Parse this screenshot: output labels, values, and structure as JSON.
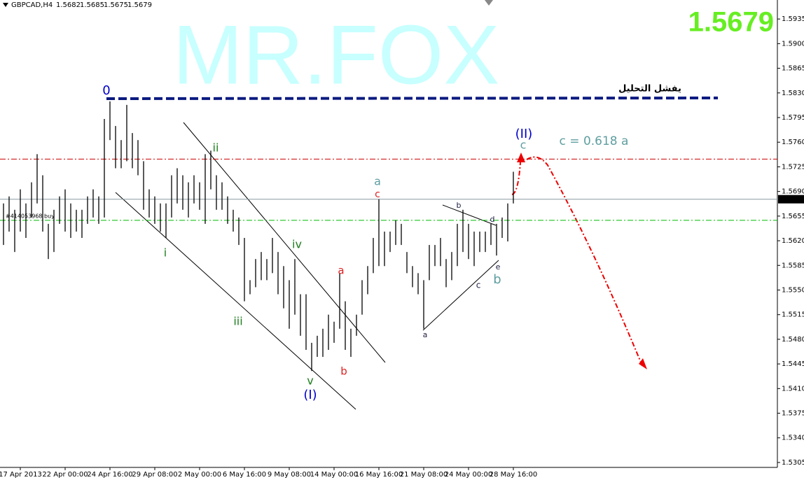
{
  "header": {
    "symbol": "GBPCAD,H4",
    "open": 1.5682,
    "high": 1.5685,
    "low": 1.5675,
    "close": 1.5679
  },
  "watermark": "MR.FOX",
  "chart_data": {
    "type": "ohlc",
    "color": "#000000",
    "x": [
      0,
      2,
      4,
      6,
      8,
      10,
      12,
      14,
      16,
      18,
      20,
      22,
      24,
      26,
      28,
      30,
      32,
      34,
      36,
      38,
      40,
      42,
      44,
      46,
      48,
      50,
      52,
      54,
      56,
      58,
      60,
      62,
      64,
      66,
      68,
      70,
      72,
      74,
      76,
      78,
      80,
      82,
      84,
      86,
      88,
      90,
      92,
      94,
      96,
      98,
      100,
      102,
      104,
      106,
      108,
      110,
      112,
      114,
      116,
      118,
      120,
      122,
      124,
      126,
      128,
      130,
      132,
      134,
      136,
      138,
      140,
      142,
      144,
      146,
      148,
      150,
      152,
      154,
      156,
      158,
      160,
      162,
      164,
      166,
      168,
      170,
      172,
      174,
      176,
      178,
      180,
      182
    ],
    "high": [
      1.5673,
      1.5683,
      1.5664,
      1.5693,
      1.5673,
      1.5703,
      1.5743,
      1.5713,
      1.5644,
      1.5664,
      1.5683,
      1.5693,
      1.5673,
      1.5664,
      1.5664,
      1.5683,
      1.5693,
      1.5683,
      1.5793,
      1.5818,
      1.5783,
      1.5763,
      1.5813,
      1.5773,
      1.5763,
      1.5733,
      1.5693,
      1.5683,
      1.5673,
      1.5673,
      1.5713,
      1.5723,
      1.5713,
      1.5703,
      1.5713,
      1.5703,
      1.5743,
      1.5748,
      1.5713,
      1.5703,
      1.5683,
      1.5664,
      1.5653,
      1.5624,
      1.5564,
      1.5594,
      1.5604,
      1.5594,
      1.5624,
      1.5604,
      1.5584,
      1.5564,
      1.5594,
      1.5544,
      1.5544,
      1.5475,
      1.5485,
      1.5495,
      1.5515,
      1.5505,
      1.5574,
      1.5534,
      1.5495,
      1.5515,
      1.5564,
      1.5584,
      1.5624,
      1.5679,
      1.5633,
      1.5633,
      1.5649,
      1.5644,
      1.5604,
      1.5584,
      1.5574,
      1.5564,
      1.5614,
      1.5614,
      1.5624,
      1.5594,
      1.5604,
      1.5644,
      1.5664,
      1.5644,
      1.5633,
      1.5633,
      1.5633,
      1.5644,
      1.5644,
      1.5653,
      1.5673,
      1.5718
    ],
    "low": [
      1.5614,
      1.5633,
      1.5604,
      1.5633,
      1.5624,
      1.5653,
      1.5673,
      1.5633,
      1.5594,
      1.5604,
      1.5644,
      1.5633,
      1.5624,
      1.5633,
      1.5624,
      1.5644,
      1.5653,
      1.5644,
      1.5653,
      1.5763,
      1.5723,
      1.5723,
      1.5733,
      1.5723,
      1.5713,
      1.5664,
      1.5653,
      1.5644,
      1.5633,
      1.5624,
      1.5653,
      1.5673,
      1.5664,
      1.5653,
      1.5673,
      1.5664,
      1.5644,
      1.5693,
      1.5664,
      1.5664,
      1.5644,
      1.5633,
      1.5614,
      1.5534,
      1.5544,
      1.5554,
      1.5564,
      1.5564,
      1.5574,
      1.5544,
      1.5524,
      1.5495,
      1.5515,
      1.5485,
      1.5465,
      1.5435,
      1.5455,
      1.5455,
      1.5465,
      1.5475,
      1.5495,
      1.5465,
      1.5455,
      1.5485,
      1.5515,
      1.5544,
      1.5574,
      1.5584,
      1.5584,
      1.5604,
      1.5614,
      1.5614,
      1.5574,
      1.5554,
      1.5544,
      1.5495,
      1.5564,
      1.5584,
      1.5584,
      1.5554,
      1.5564,
      1.5584,
      1.5604,
      1.5594,
      1.5584,
      1.5604,
      1.5604,
      1.5614,
      1.5599,
      1.5624,
      1.5619,
      1.5673
    ],
    "xlim": [
      -1.25,
      276.25
    ],
    "xticks": [
      {
        "value": 6,
        "label": "17 Apr 2013"
      },
      {
        "value": 22,
        "label": "22 Apr 00:00"
      },
      {
        "value": 38,
        "label": "24 Apr 16:00"
      },
      {
        "value": 54,
        "label": "29 Apr 08:00"
      },
      {
        "value": 70,
        "label": "2 May 00:00"
      },
      {
        "value": 86,
        "label": "6 May 16:00"
      },
      {
        "value": 102,
        "label": "9 May 08:00"
      },
      {
        "value": 118,
        "label": "14 May 00:00"
      },
      {
        "value": 134,
        "label": "16 May 16:00"
      },
      {
        "value": 150,
        "label": "21 May 08:00"
      },
      {
        "value": 166,
        "label": "24 May 00:00"
      },
      {
        "value": 182,
        "label": "28 May 16:00"
      }
    ],
    "ylim": [
      1.5298,
      1.5962
    ],
    "yticks": [
      1.5935,
      {
        "value": 1.59,
        "label": "1.5900"
      },
      1.5865,
      {
        "value": 1.583,
        "label": "1.5830"
      },
      1.5795,
      {
        "value": 1.576,
        "label": "1.5760"
      },
      1.5725,
      {
        "value": 1.569,
        "label": "1.5690"
      },
      1.5655,
      {
        "value": 1.562,
        "label": "1.5620"
      },
      1.5585,
      {
        "value": 1.555,
        "label": "1.5550"
      },
      1.5515,
      {
        "value": 1.548,
        "label": "1.5480"
      },
      1.5445,
      {
        "value": 1.541,
        "label": "1.5410"
      },
      1.5375,
      {
        "value": 1.534,
        "label": "1.5340"
      },
      1.5305
    ],
    "levels": [
      {
        "value": 1.5736,
        "color": "#cc0000"
      },
      {
        "value": 1.5649,
        "color": "#00bb00"
      }
    ],
    "order_label": "#414053968 buy",
    "annotations": [
      {
        "text": "0",
        "color": "#0000cc"
      },
      {
        "text": "ii",
        "color": "#1e7d1e"
      },
      {
        "text": "i",
        "color": "#1e7d1e"
      },
      {
        "text": "iii",
        "color": "#1e7d1e"
      },
      {
        "text": "iv",
        "color": "#1e7d1e"
      },
      {
        "text": "v",
        "color": "#1e7d1e"
      },
      {
        "text": "(I)",
        "color": "#0000cc"
      },
      {
        "text": "a",
        "color": "#dd2222"
      },
      {
        "text": "b",
        "color": "#dd2222"
      },
      {
        "text": "a",
        "color": "#5f9ea0"
      },
      {
        "text": "c",
        "color": "#dd2222"
      },
      {
        "text": "a",
        "color": "#222244"
      },
      {
        "text": "b",
        "color": "#222244"
      },
      {
        "text": "c",
        "color": "#222244"
      },
      {
        "text": "d",
        "color": "#222244"
      },
      {
        "text": "e",
        "color": "#222244"
      },
      {
        "text": "b",
        "color": "#5f9ea0"
      },
      {
        "text": "(II)",
        "color": "#0000cc"
      },
      {
        "text": "c",
        "color": "#5f9ea0"
      },
      {
        "text": "c = 0.618 a",
        "color": "#5f9ea0"
      },
      {
        "text": "يفشل التحليل",
        "color": "#000000"
      }
    ]
  }
}
